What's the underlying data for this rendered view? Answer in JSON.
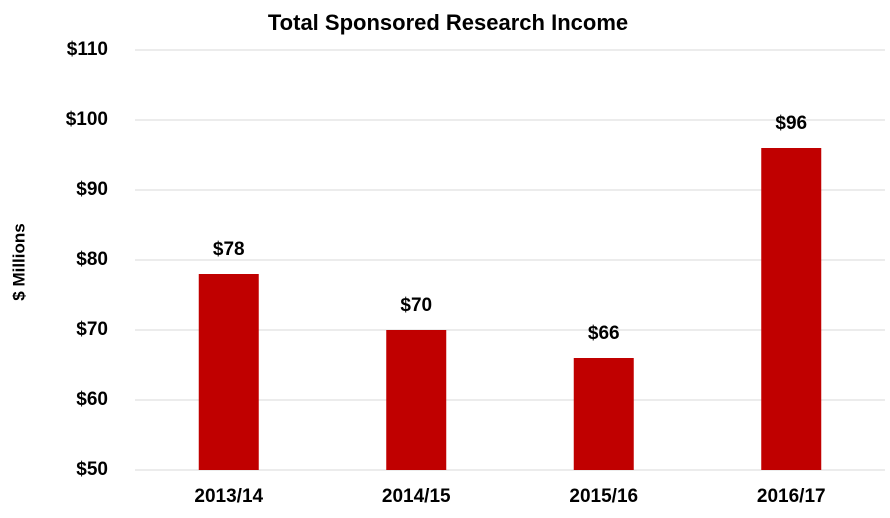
{
  "chart_data": {
    "type": "bar",
    "title": "Total Sponsored Research Income",
    "y_label": "$ Millions",
    "categories": [
      "2013/14",
      "2014/15",
      "2015/16",
      "2016/17"
    ],
    "values": [
      78,
      70,
      66,
      96
    ],
    "value_labels": [
      "$78",
      "$70",
      "$66",
      "$96"
    ],
    "color": "#c00000",
    "ylim": [
      50,
      110
    ],
    "yticks": [
      {
        "value": 50,
        "label": "$50"
      },
      {
        "value": 60,
        "label": "$60"
      },
      {
        "value": 70,
        "label": "$70"
      },
      {
        "value": 80,
        "label": "$80"
      },
      {
        "value": 90,
        "label": "$90"
      },
      {
        "value": 100,
        "label": "$100"
      },
      {
        "value": 110,
        "label": "$110"
      }
    ],
    "grid": true
  }
}
